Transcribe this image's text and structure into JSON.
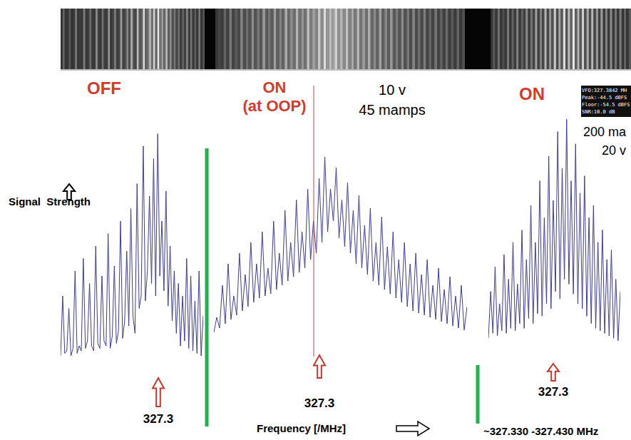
{
  "chart_data": [
    {
      "type": "line",
      "title": "OFF",
      "ylabel": "Signal  Strength",
      "peak_label": "327.3",
      "color": "#3c3c96",
      "ylim": [
        0,
        100
      ],
      "tick_labels": false,
      "values": [
        6,
        30,
        7,
        8,
        25,
        6,
        9,
        40,
        7,
        10,
        8,
        45,
        9,
        12,
        35,
        10,
        8,
        50,
        11,
        9,
        38,
        12,
        10,
        55,
        9,
        14,
        42,
        11,
        16,
        60,
        13,
        20,
        48,
        18,
        65,
        22,
        15,
        75,
        25,
        30,
        90,
        28,
        40,
        70,
        35,
        85,
        30,
        95,
        38,
        60,
        32,
        72,
        26,
        50,
        20,
        40,
        15,
        35,
        10,
        30,
        12,
        45,
        9,
        38,
        8,
        28,
        7,
        40,
        6,
        22
      ]
    },
    {
      "type": "line",
      "title": "ON",
      "subtitle": "(at OOP)",
      "annotations": [
        "10 v",
        "45 mamps"
      ],
      "xlabel": "Frequency [/MHz]",
      "peak_label": "327.3",
      "color": "#3c3c96",
      "ylim": [
        0,
        100
      ],
      "tick_labels": false,
      "values": [
        8,
        15,
        10,
        30,
        12,
        40,
        14,
        25,
        16,
        45,
        18,
        35,
        20,
        50,
        22,
        40,
        24,
        55,
        25,
        38,
        26,
        60,
        28,
        45,
        30,
        65,
        32,
        50,
        34,
        70,
        36,
        55,
        38,
        75,
        42,
        60,
        45,
        80,
        50,
        90,
        55,
        75,
        60,
        85,
        52,
        70,
        48,
        78,
        45,
        65,
        40,
        72,
        38,
        58,
        35,
        66,
        32,
        50,
        30,
        62,
        28,
        48,
        26,
        55,
        24,
        42,
        22,
        50,
        20,
        40,
        18,
        45,
        17,
        35,
        16,
        42,
        15,
        30,
        14,
        38,
        13,
        28,
        12,
        34,
        11,
        25,
        10,
        30,
        9,
        20
      ]
    },
    {
      "type": "line",
      "title": "ON",
      "annotations": [
        "200 ma",
        "20 v"
      ],
      "readout": [
        "VFO:327.3842 MH",
        "Peak:-44.5 dBFS",
        "Floor:-54.5 dBFS",
        "SNR:10.0 dB"
      ],
      "peak_label": "327.3",
      "x_range_label": "~327.330 -327.430 MHz",
      "color": "#3c3c96",
      "ylim": [
        0,
        100
      ],
      "tick_labels": false,
      "values": [
        6,
        25,
        8,
        35,
        7,
        20,
        9,
        40,
        8,
        30,
        10,
        45,
        9,
        28,
        12,
        50,
        10,
        38,
        14,
        60,
        12,
        45,
        16,
        70,
        15,
        55,
        20,
        80,
        18,
        62,
        25,
        90,
        22,
        75,
        30,
        95,
        28,
        70,
        24,
        85,
        20,
        65,
        18,
        72,
        15,
        55,
        12,
        60,
        10,
        45,
        9,
        50,
        8,
        38,
        7,
        42,
        6,
        30,
        5,
        25
      ]
    }
  ]
}
